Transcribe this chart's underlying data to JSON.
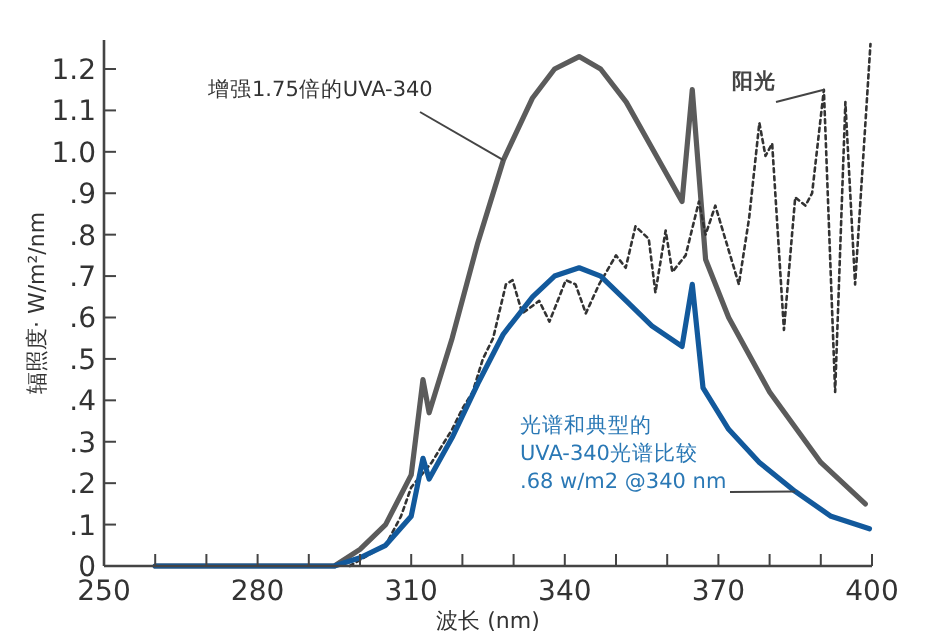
{
  "chart_data": {
    "type": "line",
    "xlabel": "波长 (nm)",
    "ylabel": "辐照度· W/m²/nm",
    "xlim": [
      250,
      400
    ],
    "ylim": [
      0,
      1.27
    ],
    "xticks": [
      250,
      {
        "value": 260,
        "label": null
      },
      {
        "value": 270,
        "label": null
      },
      280,
      {
        "value": 290,
        "label": null
      },
      {
        "value": 300,
        "label": null
      },
      310,
      {
        "value": 320,
        "label": null
      },
      {
        "value": 330,
        "label": null
      },
      340,
      {
        "value": 350,
        "label": null
      },
      {
        "value": 360,
        "label": null
      },
      370,
      {
        "value": 380,
        "label": null
      },
      {
        "value": 390,
        "label": null
      },
      400
    ],
    "yticks": [
      0,
      {
        "value": 0.1,
        "label": ".1"
      },
      {
        "value": 0.2,
        "label": ".2"
      },
      {
        "value": 0.3,
        "label": ".3"
      },
      {
        "value": 0.4,
        "label": ".4"
      },
      {
        "value": 0.5,
        "label": ".5"
      },
      {
        "value": 0.6,
        "label": ".6"
      },
      {
        "value": 0.7,
        "label": ".7"
      },
      {
        "value": 0.8,
        "label": ".8"
      },
      {
        "value": 0.9,
        "label": ".9"
      },
      {
        "value": 1.0,
        "label": "1.0"
      },
      {
        "value": 1.1,
        "label": "1.1"
      },
      {
        "value": 1.2,
        "label": "1.2"
      }
    ],
    "grid": false,
    "marker": "none",
    "series": [
      {
        "color": "#5b5b5b",
        "line_style": "solid",
        "x": [
          260,
          295,
          300,
          305,
          310,
          312.3,
          313.5,
          318,
          323,
          328,
          333.7,
          338,
          342.8,
          347,
          352,
          357,
          362.9,
          364.9,
          367.5,
          372,
          380,
          390,
          398.7
        ],
        "values": [
          0,
          0,
          0.04,
          0.1,
          0.22,
          0.45,
          0.37,
          0.55,
          0.78,
          0.98,
          1.13,
          1.2,
          1.23,
          1.2,
          1.12,
          1.01,
          0.88,
          1.15,
          0.74,
          0.6,
          0.42,
          0.25,
          0.15
        ]
      },
      {
        "color": "#333333",
        "line_style": "dotted",
        "x": [
          298,
          305,
          308,
          310,
          312,
          314,
          316,
          318,
          320,
          322,
          324,
          326,
          328.5,
          329.8,
          331.7,
          335,
          337,
          340.2,
          342.1,
          344.1,
          346.7,
          350,
          351.9,
          353.8,
          356.4,
          357.7,
          359.7,
          361,
          363.6,
          366.2,
          367.5,
          369.4,
          374,
          376,
          378,
          379.2,
          380.5,
          382.8,
          385,
          387,
          388.3,
          390.6,
          392.8,
          394.8,
          396.7,
          399.7
        ],
        "values": [
          0,
          0.05,
          0.12,
          0.19,
          0.22,
          0.25,
          0.29,
          0.33,
          0.38,
          0.42,
          0.5,
          0.55,
          0.68,
          0.69,
          0.61,
          0.64,
          0.59,
          0.69,
          0.68,
          0.61,
          0.68,
          0.75,
          0.72,
          0.82,
          0.79,
          0.66,
          0.81,
          0.71,
          0.75,
          0.88,
          0.8,
          0.87,
          0.68,
          0.84,
          1.07,
          0.99,
          1.02,
          0.57,
          0.89,
          0.87,
          0.9,
          1.15,
          0.42,
          1.12,
          0.68,
          1.26
        ]
      },
      {
        "color": "#12599c",
        "line_style": "solid",
        "x": [
          260,
          295,
          300,
          305,
          310,
          312.3,
          313.5,
          318,
          323,
          328,
          333.7,
          338,
          342.8,
          347,
          352,
          357,
          362.9,
          364.9,
          367,
          372,
          378,
          385,
          392,
          399.5
        ],
        "values": [
          0,
          0,
          0.02,
          0.05,
          0.12,
          0.26,
          0.21,
          0.31,
          0.44,
          0.56,
          0.65,
          0.7,
          0.72,
          0.7,
          0.64,
          0.58,
          0.53,
          0.68,
          0.43,
          0.33,
          0.25,
          0.18,
          0.12,
          0.09
        ]
      }
    ],
    "annotations": [
      {
        "text": "增强1.75倍的UVA-340",
        "x": 328,
        "y": 0.98
      },
      {
        "text": "阳光",
        "x": 390.6,
        "y": 1.15
      },
      {
        "text": "光谱和典型的\nUVA-340光谱比较\n.68 w/m2 @340 nm",
        "x": 385,
        "y": 0.18
      }
    ]
  }
}
